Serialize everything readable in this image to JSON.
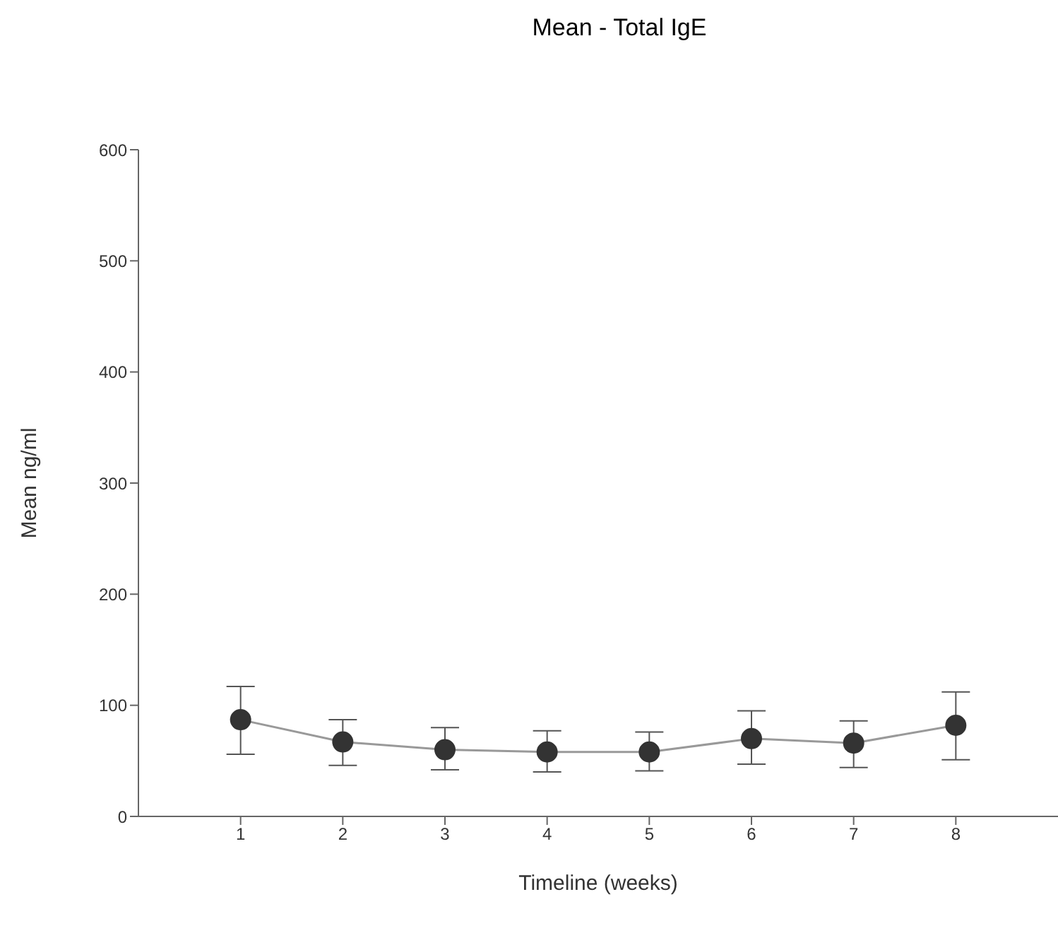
{
  "chart_data": {
    "type": "line",
    "title": "Mean - Total IgE",
    "xlabel": "Timeline (weeks)",
    "ylabel": "Mean ng/ml",
    "x": [
      1,
      2,
      3,
      4,
      5,
      6,
      7,
      8
    ],
    "series": [
      {
        "color": "#333333",
        "values": [
          87,
          67,
          60,
          58,
          58,
          70,
          66,
          82
        ],
        "errors": [
          [
            56,
            117
          ],
          [
            46,
            87
          ],
          [
            42,
            80
          ],
          [
            40,
            77
          ],
          [
            41,
            76
          ],
          [
            47,
            95
          ],
          [
            44,
            86
          ],
          [
            51,
            112
          ]
        ]
      }
    ],
    "xlim": [
      0,
      9
    ],
    "xticks": [
      1,
      2,
      3,
      4,
      5,
      6,
      7,
      8
    ],
    "ylim": [
      0,
      600
    ],
    "yticks": [
      0,
      100,
      200,
      300,
      400,
      500,
      600
    ],
    "grid": false,
    "legend": false,
    "marker": "circle",
    "line_style": "solid"
  }
}
